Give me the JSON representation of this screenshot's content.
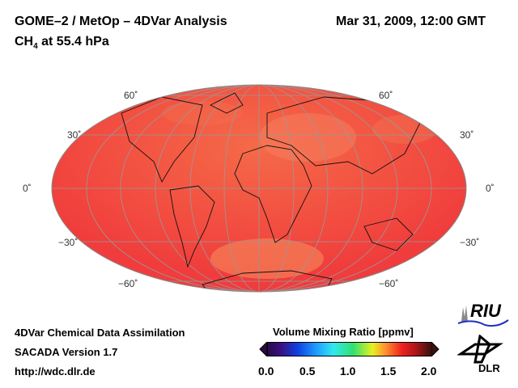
{
  "header": {
    "title": "GOME–2 / MetOp – 4DVar Analysis",
    "datetime": "Mar 31, 2009, 12:00 GMT",
    "species": "CH",
    "species_sub": "4",
    "level": " at 55.4 hPa"
  },
  "map": {
    "lat_labels": [
      "60˚",
      "30˚",
      "0˚",
      "−30˚",
      "−60˚"
    ],
    "colors": {
      "dominant": "#f03c3c",
      "light": "#f57a50"
    }
  },
  "footer": {
    "line1": "4DVar Chemical Data Assimilation",
    "line2": "SACADA Version 1.7",
    "line3": "http://wdc.dlr.de"
  },
  "colorbar": {
    "title": "Volume Mixing Ratio [ppmv]",
    "ticks": [
      "0.0",
      "0.5",
      "1.0",
      "1.5",
      "2.0"
    ],
    "min": 0.0,
    "max": 2.0
  },
  "logos": {
    "riu": "RIU",
    "dlr": "DLR"
  }
}
